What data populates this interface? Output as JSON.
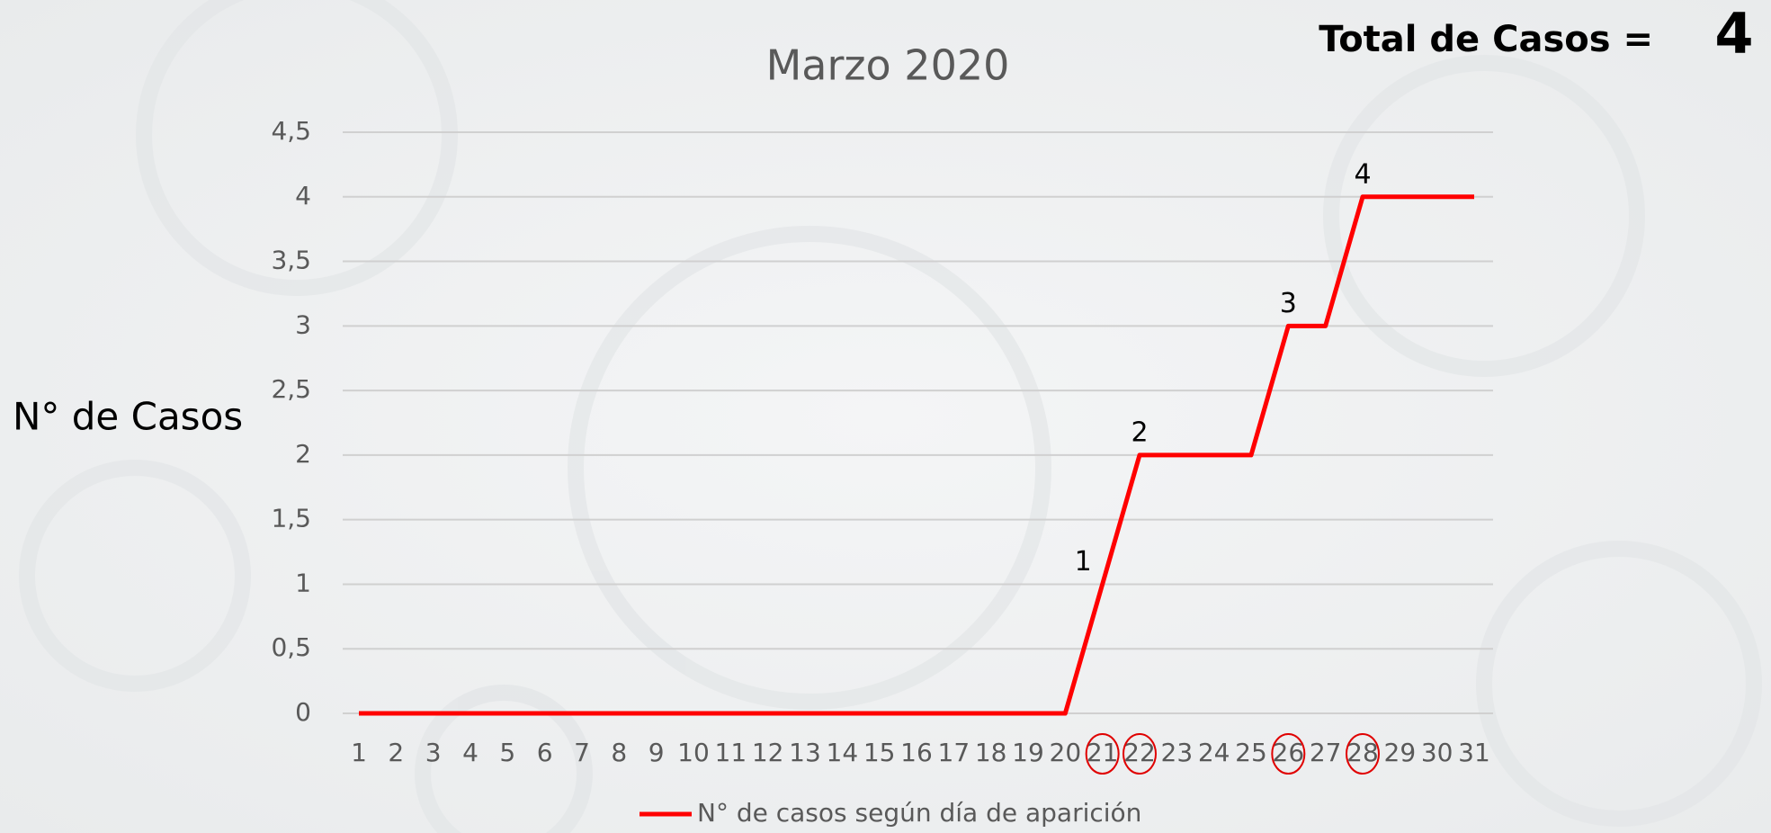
{
  "chart_data": {
    "type": "line",
    "title": "Marzo 2020",
    "total_label": "Total de Casos =",
    "total": 4,
    "ylabel": "N° de Casos",
    "x": [
      1,
      2,
      3,
      4,
      5,
      6,
      7,
      8,
      9,
      10,
      11,
      12,
      13,
      14,
      15,
      16,
      17,
      18,
      19,
      20,
      21,
      22,
      23,
      24,
      25,
      26,
      27,
      28,
      29,
      30,
      31
    ],
    "xlim": [
      1,
      31
    ],
    "series": [
      {
        "name": "N° de casos según día de aparición",
        "color": "#ff0000",
        "values": [
          0,
          0,
          0,
          0,
          0,
          0,
          0,
          0,
          0,
          0,
          0,
          0,
          0,
          0,
          0,
          0,
          0,
          0,
          0,
          0,
          1,
          2,
          2,
          2,
          2,
          3,
          3,
          4,
          4,
          4,
          4
        ],
        "value_labels": [
          null,
          null,
          null,
          null,
          null,
          null,
          null,
          null,
          null,
          null,
          null,
          null,
          null,
          null,
          null,
          null,
          null,
          null,
          null,
          null,
          "1",
          "2",
          null,
          null,
          null,
          "3",
          null,
          "4",
          null,
          null,
          null
        ]
      }
    ],
    "highlighted_x": [
      21,
      22,
      26,
      28
    ],
    "ylim": [
      0,
      4.5
    ],
    "yticks": [
      0,
      {
        "value": 0.5,
        "label": "0,5"
      },
      1,
      {
        "value": 1.5,
        "label": "1,5"
      },
      2,
      {
        "value": 2.5,
        "label": "2,5"
      },
      3,
      {
        "value": 3.5,
        "label": "3,5"
      },
      4,
      {
        "value": 4.5,
        "label": "4,5"
      }
    ],
    "grid": true,
    "legend": "bottom"
  }
}
